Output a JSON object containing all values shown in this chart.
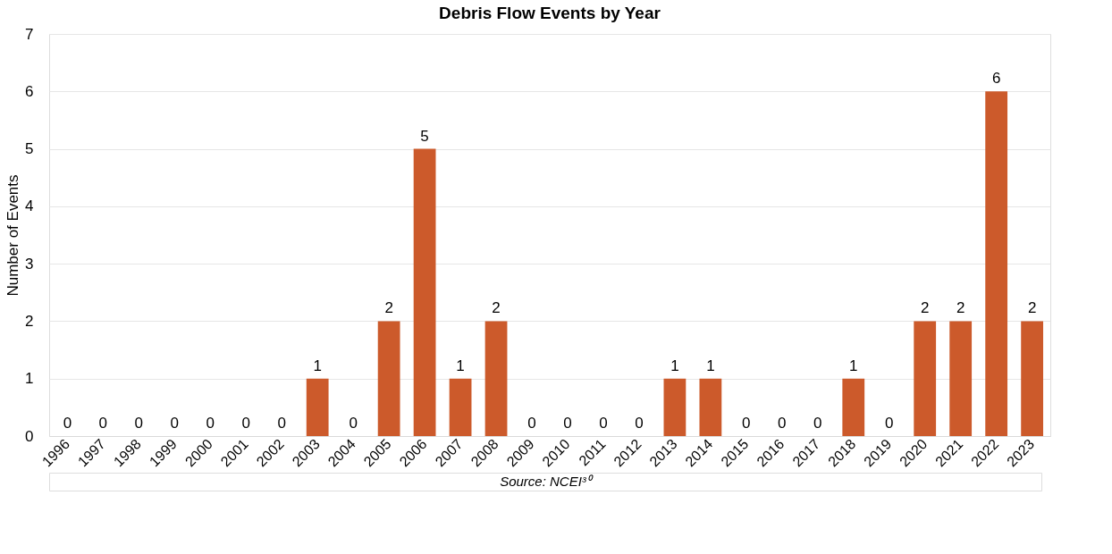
{
  "chart_data": {
    "type": "bar",
    "title": "Debris Flow Events by Year",
    "ylabel": "Number of Events",
    "categories": [
      "1996",
      "1997",
      "1998",
      "1999",
      "2000",
      "2001",
      "2002",
      "2003",
      "2004",
      "2005",
      "2006",
      "2007",
      "2008",
      "2009",
      "2010",
      "2011",
      "2012",
      "2013",
      "2014",
      "2015",
      "2016",
      "2017",
      "2018",
      "2019",
      "2020",
      "2021",
      "2022",
      "2023"
    ],
    "values": [
      0,
      0,
      0,
      0,
      0,
      0,
      0,
      1,
      0,
      2,
      5,
      1,
      2,
      0,
      0,
      0,
      0,
      1,
      1,
      0,
      0,
      0,
      1,
      0,
      2,
      2,
      6,
      2
    ],
    "color": "#cc5a2b",
    "ylim": [
      0,
      7
    ],
    "yticks": [
      0,
      1,
      2,
      3,
      4,
      5,
      6,
      7
    ],
    "grid": "y",
    "data_labels": true,
    "annotations": [
      "Source: NCEI³⁰"
    ]
  }
}
